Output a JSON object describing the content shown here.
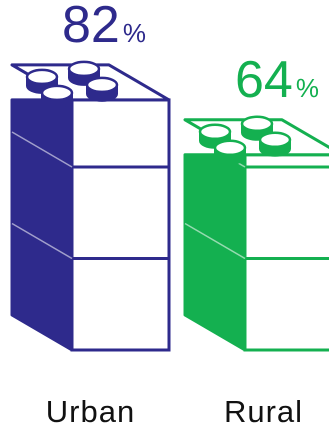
{
  "chart_data": {
    "type": "bar",
    "categories": [
      "Urban",
      "Rural"
    ],
    "values": [
      82,
      64
    ],
    "unit": "%",
    "colors": [
      "#2e2a8c",
      "#14b050"
    ],
    "ylim": [
      0,
      100
    ],
    "value_labels": [
      "82",
      "64"
    ],
    "style": "stacked-brick-pictograph"
  }
}
